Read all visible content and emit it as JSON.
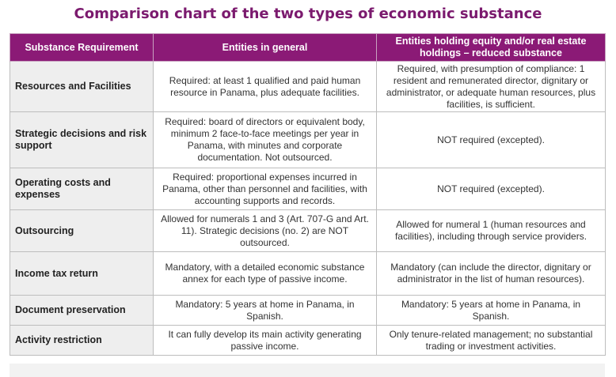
{
  "title": "Comparison chart of the two types of economic substance",
  "headers": [
    "Substance Requirement",
    "Entities in general",
    "Entities holding equity and/or real estate holdings – reduced substance"
  ],
  "rows": [
    {
      "requirement": "Resources and Facilities",
      "general": "Required: at least 1 qualified and paid human resource in Panama, plus adequate facilities.",
      "reduced": "Required, with presumption of compliance: 1 resident and remunerated director, dignitary or administrator, or adequate human resources, plus facilities, is sufficient."
    },
    {
      "requirement": "Strategic decisions and risk support",
      "general": "Required: board of directors or equivalent body, minimum 2 face-to-face meetings per year in Panama, with minutes and corporate documentation. Not outsourced.",
      "reduced": "NOT required (excepted)."
    },
    {
      "requirement": "Operating costs and expenses",
      "general": "Required: proportional expenses incurred in Panama, other than personnel and facilities, with accounting supports and records.",
      "reduced": "NOT required (excepted)."
    },
    {
      "requirement": "Outsourcing",
      "general": "Allowed for numerals 1 and 3 (Art. 707-G and Art. 11). Strategic decisions (no. 2) are NOT outsourced.",
      "reduced": "Allowed for numeral 1 (human resources and facilities), including through service providers."
    },
    {
      "requirement": "Income tax return",
      "general": "Mandatory, with a detailed economic substance annex for each type of passive income.",
      "reduced": "Mandatory (can include the director, dignitary or administrator in the list of human resources)."
    },
    {
      "requirement": "Document preservation",
      "general": "Mandatory: 5 years at home in Panama, in Spanish.",
      "reduced": "Mandatory: 5 years at home in Panama, in Spanish."
    },
    {
      "requirement": "Activity restriction",
      "general": "It can fully develop its main activity generating passive income.",
      "reduced": "Only tenure-related management; no substantial trading or investment activities."
    }
  ]
}
